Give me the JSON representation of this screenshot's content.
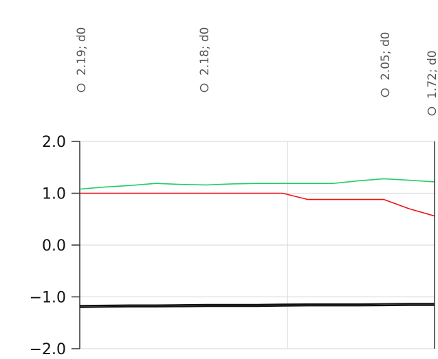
{
  "chart_data": {
    "type": "line",
    "title": "",
    "xlabel": "",
    "ylabel": "",
    "x": [
      0,
      1,
      2,
      3,
      4,
      5,
      6,
      7,
      8,
      9,
      10,
      11,
      12,
      13,
      14
    ],
    "xlim": [
      0,
      14
    ],
    "ylim": [
      -2.0,
      2.0
    ],
    "y_ticks": [
      2.0,
      1.0,
      0.0,
      -1.0,
      -2.0
    ],
    "y_tick_labels": [
      "2.0",
      "1.0",
      "0.0",
      "−1.0",
      "−2.0"
    ],
    "x_gridlines": [
      8.2
    ],
    "grid": true,
    "series": [
      {
        "color": "#22cc66",
        "values": [
          1.08,
          1.12,
          1.15,
          1.19,
          1.17,
          1.16,
          1.18,
          1.19,
          1.19,
          1.19,
          1.19,
          1.24,
          1.28,
          1.25,
          1.22
        ]
      },
      {
        "color": "#ee1111",
        "values": [
          1.0,
          1.0,
          1.0,
          1.0,
          1.0,
          1.0,
          1.0,
          1.0,
          1.0,
          0.88,
          0.88,
          0.88,
          0.88,
          0.7,
          0.56
        ]
      },
      {
        "color": "#111111",
        "values": [
          -1.17,
          -1.165,
          -1.16,
          -1.16,
          -1.155,
          -1.15,
          -1.15,
          -1.15,
          -1.145,
          -1.14,
          -1.14,
          -1.14,
          -1.135,
          -1.13,
          -1.13
        ]
      },
      {
        "color": "#111111",
        "values": [
          -1.2,
          -1.195,
          -1.19,
          -1.19,
          -1.185,
          -1.18,
          -1.18,
          -1.18,
          -1.175,
          -1.17,
          -1.17,
          -1.17,
          -1.165,
          -1.16,
          -1.16
        ]
      }
    ],
    "annotations": [
      {
        "label": "2.19; d0",
        "x": 0
      },
      {
        "label": "2.18; d0",
        "x": 5
      },
      {
        "label": "2.05; d0",
        "x": 12
      },
      {
        "label": "1.72; d0",
        "x": 14
      }
    ]
  }
}
